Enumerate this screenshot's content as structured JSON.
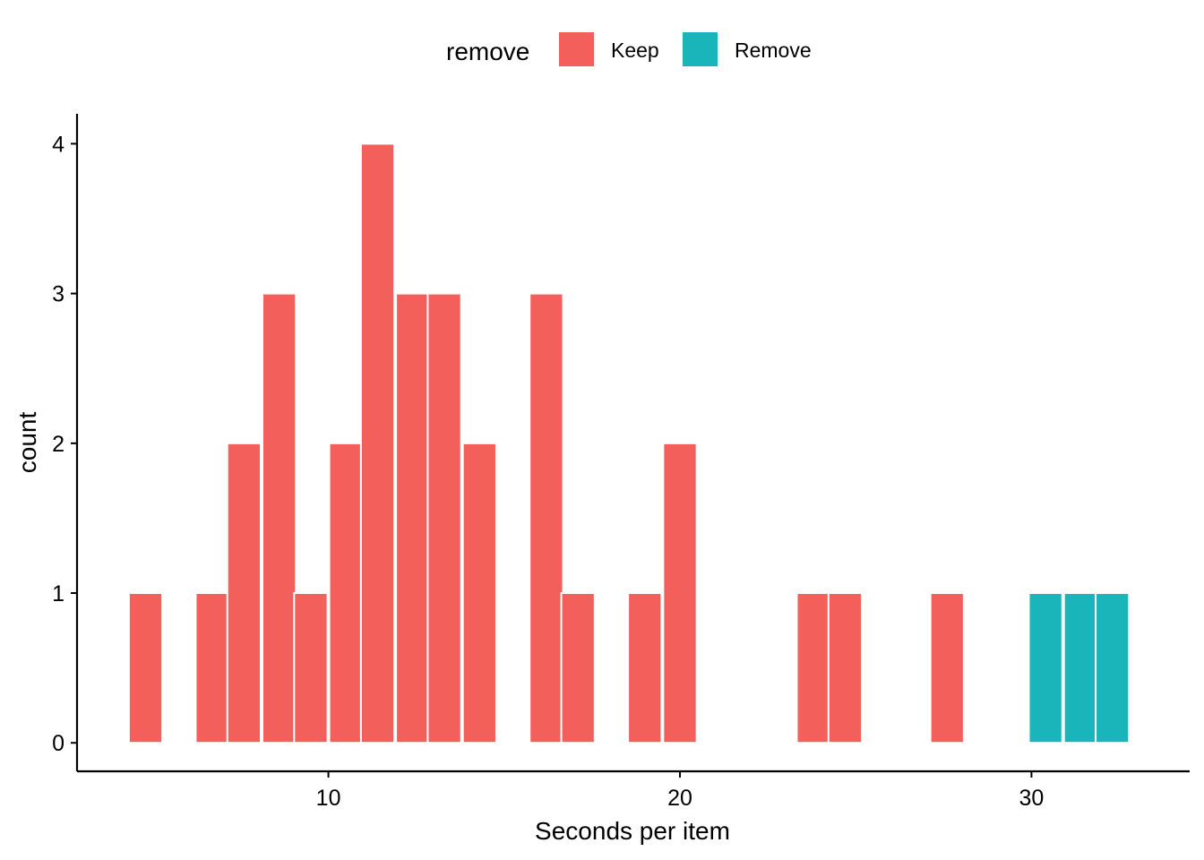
{
  "chart_data": {
    "type": "bar",
    "xlabel": "Seconds per item",
    "ylabel": "count",
    "xlim": [
      2.85,
      34.5
    ],
    "ylim": [
      -0.19,
      4.2
    ],
    "x_ticks": [
      10,
      20,
      30
    ],
    "y_ticks": [
      0,
      1,
      2,
      3,
      4
    ],
    "grid": false,
    "legend": {
      "title": "remove",
      "placement": "top",
      "entries": [
        {
          "label": "Keep",
          "color": "#F35F5B"
        },
        {
          "label": "Remove",
          "color": "#19B5BA"
        }
      ]
    },
    "bin_width": 0.95,
    "series": [
      {
        "name": "Keep",
        "color": "#F35F5B",
        "bins": [
          {
            "x": 4.8,
            "count": 1
          },
          {
            "x": 6.7,
            "count": 1
          },
          {
            "x": 7.6,
            "count": 2
          },
          {
            "x": 8.6,
            "count": 3
          },
          {
            "x": 9.5,
            "count": 1
          },
          {
            "x": 10.5,
            "count": 2
          },
          {
            "x": 11.4,
            "count": 4
          },
          {
            "x": 12.4,
            "count": 3
          },
          {
            "x": 13.3,
            "count": 3
          },
          {
            "x": 14.3,
            "count": 2
          },
          {
            "x": 16.2,
            "count": 3
          },
          {
            "x": 17.1,
            "count": 1
          },
          {
            "x": 19.0,
            "count": 1
          },
          {
            "x": 20.0,
            "count": 2
          },
          {
            "x": 23.8,
            "count": 1
          },
          {
            "x": 24.7,
            "count": 1
          },
          {
            "x": 27.6,
            "count": 1
          }
        ]
      },
      {
        "name": "Remove",
        "color": "#19B5BA",
        "bins": [
          {
            "x": 30.4,
            "count": 1
          },
          {
            "x": 31.4,
            "count": 1
          },
          {
            "x": 32.3,
            "count": 1
          }
        ]
      }
    ]
  }
}
